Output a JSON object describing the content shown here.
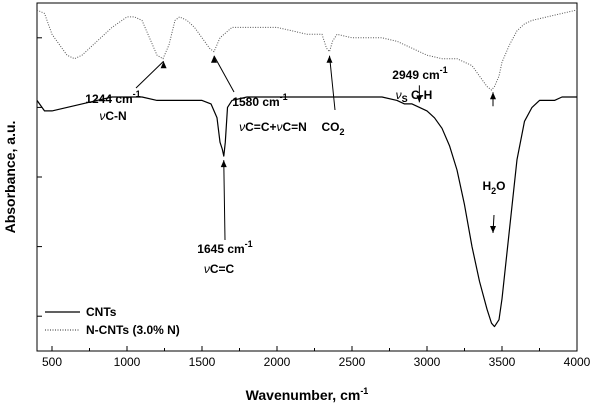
{
  "chart_data": {
    "type": "line",
    "xlabel": "Wavenumber, cm",
    "xlabel_sup": "-1",
    "ylabel": "Absorbance, a.u.",
    "xlim": [
      400,
      4000
    ],
    "xticks": [
      500,
      1000,
      1500,
      2000,
      2500,
      3000,
      3500,
      4000
    ],
    "ylim": [
      0,
      1
    ],
    "y_ticks_unlabeled": 5,
    "grid": false,
    "legend_position": "bottom-left",
    "series": [
      {
        "name": "CNTs",
        "style": "solid",
        "color": "#000000",
        "x": [
          400,
          450,
          500,
          600,
          700,
          800,
          900,
          1000,
          1100,
          1200,
          1300,
          1400,
          1500,
          1560,
          1600,
          1620,
          1635,
          1645,
          1655,
          1670,
          1700,
          1800,
          1900,
          2000,
          2100,
          2200,
          2300,
          2400,
          2500,
          2600,
          2700,
          2800,
          2850,
          2900,
          2950,
          3000,
          3050,
          3100,
          3150,
          3200,
          3250,
          3300,
          3350,
          3400,
          3430,
          3450,
          3480,
          3500,
          3550,
          3600,
          3650,
          3700,
          3750,
          3800,
          3850,
          3900,
          3950,
          4000
        ],
        "y": [
          0.72,
          0.69,
          0.69,
          0.7,
          0.71,
          0.72,
          0.73,
          0.73,
          0.73,
          0.72,
          0.72,
          0.72,
          0.72,
          0.71,
          0.67,
          0.6,
          0.58,
          0.56,
          0.6,
          0.7,
          0.72,
          0.73,
          0.73,
          0.73,
          0.73,
          0.73,
          0.73,
          0.73,
          0.73,
          0.73,
          0.73,
          0.72,
          0.71,
          0.71,
          0.7,
          0.69,
          0.67,
          0.64,
          0.59,
          0.52,
          0.42,
          0.3,
          0.2,
          0.12,
          0.08,
          0.07,
          0.09,
          0.15,
          0.35,
          0.55,
          0.66,
          0.7,
          0.72,
          0.72,
          0.72,
          0.73,
          0.73,
          0.73
        ]
      },
      {
        "name": "N-CNTs (3.0% N)",
        "style": "dotted",
        "color": "#555555",
        "x": [
          400,
          450,
          500,
          600,
          650,
          700,
          800,
          900,
          1000,
          1050,
          1100,
          1150,
          1200,
          1240,
          1280,
          1320,
          1350,
          1400,
          1450,
          1500,
          1550,
          1580,
          1620,
          1700,
          1800,
          1900,
          2000,
          2100,
          2200,
          2300,
          2330,
          2350,
          2370,
          2400,
          2500,
          2600,
          2700,
          2800,
          2900,
          2950,
          3000,
          3100,
          3200,
          3300,
          3350,
          3400,
          3430,
          3450,
          3480,
          3500,
          3550,
          3600,
          3650,
          3700,
          3800,
          3900,
          4000
        ],
        "y": [
          0.98,
          0.97,
          0.91,
          0.85,
          0.84,
          0.85,
          0.89,
          0.93,
          0.96,
          0.96,
          0.95,
          0.9,
          0.85,
          0.84,
          0.88,
          0.95,
          0.96,
          0.95,
          0.93,
          0.9,
          0.87,
          0.86,
          0.9,
          0.93,
          0.93,
          0.93,
          0.93,
          0.92,
          0.91,
          0.91,
          0.87,
          0.86,
          0.89,
          0.91,
          0.9,
          0.9,
          0.9,
          0.89,
          0.87,
          0.86,
          0.85,
          0.84,
          0.84,
          0.82,
          0.79,
          0.76,
          0.75,
          0.76,
          0.79,
          0.83,
          0.88,
          0.92,
          0.94,
          0.95,
          0.96,
          0.97,
          0.98
        ]
      }
    ],
    "annotations": [
      {
        "id": "ann-1244",
        "line1": "1244 cm",
        "sup1": "-1",
        "line2_prefix": "ν",
        "line2": "C-N",
        "arrow_x": 1244,
        "arrow_series": 1
      },
      {
        "id": "ann-1580",
        "line1": "1580 cm",
        "sup1": "-1",
        "line2_prefix": "ν",
        "line2": "C=C+",
        "line2_prefix_b": "ν",
        "line2_b": "C=N",
        "arrow_x": 1580,
        "arrow_series": 1
      },
      {
        "id": "ann-co2",
        "line1": "CO",
        "sub1": "2",
        "arrow_x": 2350,
        "arrow_series": 1
      },
      {
        "id": "ann-2949",
        "line1": "2949 cm",
        "sup1": "-1",
        "line2_prefix": "ν",
        "line2_sub": "S",
        "line2": "C-H"
      },
      {
        "id": "ann-1645",
        "line1": "1645 cm",
        "sup1": "-1",
        "line2_prefix": "ν",
        "line2": "C=C",
        "arrow_x": 1645,
        "arrow_series": 0
      },
      {
        "id": "ann-h2o",
        "line1": "H",
        "sub1": "2",
        "line1_tail": "O",
        "arrow_x": 3440,
        "arrow_series": 0
      }
    ],
    "legend": [
      {
        "label": "CNTs",
        "style": "solid"
      },
      {
        "label": "N-CNTs (3.0% N)",
        "style": "dotted"
      }
    ]
  }
}
